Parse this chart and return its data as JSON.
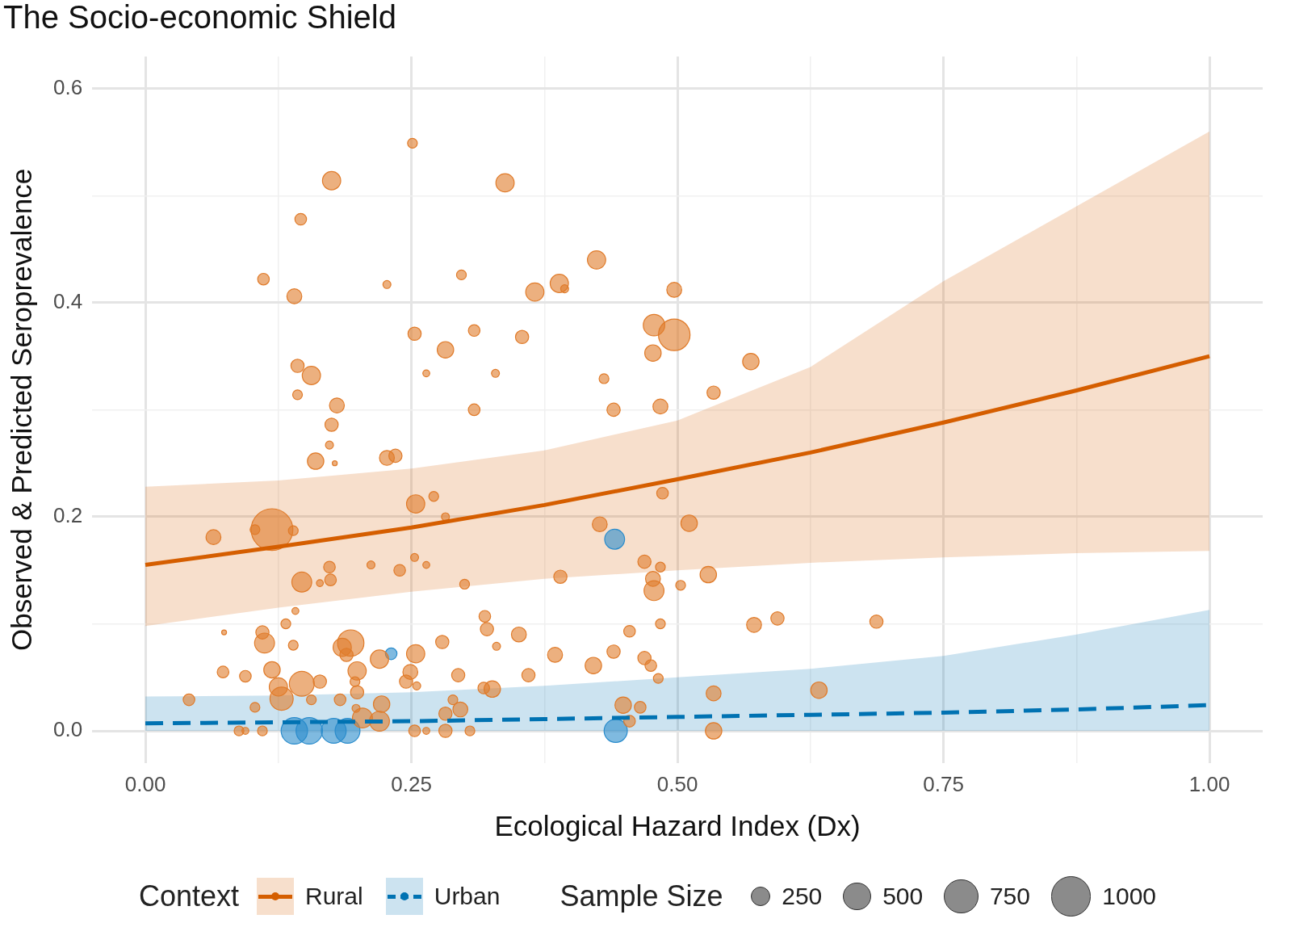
{
  "chart_data": {
    "type": "scatter",
    "title": "The Socio-economic Shield",
    "xlabel": "Ecological Hazard Index (Dx)",
    "ylabel": "Observed & Predicted Seroprevalence",
    "legend_title": "Context",
    "annotations": [
      "Sample Size"
    ],
    "legend": "bottom",
    "grid": true,
    "xlim": [
      -0.05,
      1.05
    ],
    "ylim": [
      -0.03,
      0.63
    ],
    "xticks": [
      {
        "value": 0,
        "label": "0.00"
      },
      {
        "value": 0.125,
        "label": null
      },
      0.25,
      {
        "value": 0.375,
        "label": null
      },
      {
        "value": 0.5,
        "label": "0.50"
      },
      {
        "value": 0.625,
        "label": null
      },
      0.75,
      {
        "value": 0.875,
        "label": null
      },
      {
        "value": 1,
        "label": "1.00"
      }
    ],
    "yticks": [
      {
        "value": 0,
        "label": "0.0"
      },
      {
        "value": 0.1,
        "label": null
      },
      0.2,
      {
        "value": 0.3,
        "label": null
      },
      0.4,
      {
        "value": 0.5,
        "label": null
      },
      0.6
    ],
    "size_legend": [
      250,
      500,
      750,
      1000
    ],
    "series": [
      {
        "type": "scatter",
        "color": "#e07b2a",
        "marker": "circle",
        "x": [
          0.251,
          0.175,
          0.338,
          0.146,
          0.111,
          0.227,
          0.297,
          0.424,
          0.389,
          0.394,
          0.366,
          0.14,
          0.497,
          0.478,
          0.497,
          0.253,
          0.309,
          0.354,
          0.282,
          0.477,
          0.569,
          0.143,
          0.156,
          0.264,
          0.329,
          0.431,
          0.143,
          0.534,
          0.18,
          0.309,
          0.44,
          0.484,
          0.175,
          0.173,
          0.178,
          0.16,
          0.227,
          0.235,
          0.254,
          0.271,
          0.486,
          0.282,
          0.119,
          0.064,
          0.103,
          0.139,
          0.427,
          0.511,
          0.173,
          0.212,
          0.253,
          0.264,
          0.469,
          0.484,
          0.239,
          0.39,
          0.529,
          0.477,
          0.147,
          0.174,
          0.164,
          0.3,
          0.503,
          0.478,
          0.319,
          0.141,
          0.132,
          0.074,
          0.11,
          0.321,
          0.351,
          0.572,
          0.594,
          0.687,
          0.484,
          0.455,
          0.112,
          0.139,
          0.193,
          0.185,
          0.189,
          0.279,
          0.33,
          0.22,
          0.254,
          0.385,
          0.44,
          0.469,
          0.073,
          0.119,
          0.199,
          0.249,
          0.094,
          0.421,
          0.475,
          0.294,
          0.36,
          0.164,
          0.147,
          0.197,
          0.245,
          0.255,
          0.482,
          0.125,
          0.318,
          0.326,
          0.633,
          0.199,
          0.534,
          0.041,
          0.128,
          0.156,
          0.183,
          0.289,
          0.222,
          0.103,
          0.198,
          0.296,
          0.449,
          0.465,
          0.282,
          0.204,
          0.22,
          0.455,
          0.534,
          0.088,
          0.11,
          0.253,
          0.282,
          0.305,
          0.094,
          0.264
        ],
        "values": [
          0.549,
          0.514,
          0.512,
          0.478,
          0.422,
          0.417,
          0.426,
          0.44,
          0.418,
          0.413,
          0.41,
          0.406,
          0.412,
          0.379,
          0.37,
          0.371,
          0.374,
          0.368,
          0.356,
          0.353,
          0.345,
          0.341,
          0.332,
          0.334,
          0.334,
          0.329,
          0.314,
          0.316,
          0.304,
          0.3,
          0.3,
          0.303,
          0.286,
          0.267,
          0.25,
          0.252,
          0.255,
          0.257,
          0.212,
          0.219,
          0.222,
          0.2,
          0.188,
          0.181,
          0.188,
          0.187,
          0.193,
          0.194,
          0.153,
          0.155,
          0.162,
          0.155,
          0.158,
          0.153,
          0.15,
          0.144,
          0.146,
          0.142,
          0.139,
          0.141,
          0.138,
          0.137,
          0.136,
          0.131,
          0.107,
          0.112,
          0.1,
          0.092,
          0.092,
          0.095,
          0.09,
          0.099,
          0.105,
          0.102,
          0.1,
          0.093,
          0.082,
          0.08,
          0.082,
          0.078,
          0.071,
          0.083,
          0.079,
          0.067,
          0.072,
          0.071,
          0.074,
          0.068,
          0.055,
          0.057,
          0.056,
          0.055,
          0.051,
          0.061,
          0.061,
          0.052,
          0.052,
          0.046,
          0.044,
          0.046,
          0.046,
          0.042,
          0.049,
          0.041,
          0.04,
          0.039,
          0.038,
          0.036,
          0.035,
          0.029,
          0.03,
          0.029,
          0.029,
          0.029,
          0.025,
          0.022,
          0.021,
          0.02,
          0.024,
          0.022,
          0.016,
          0.012,
          0.009,
          0.009,
          0,
          0,
          0,
          0,
          0,
          0,
          0,
          0
        ],
        "sizes": [
          60,
          210,
          210,
          85,
          85,
          40,
          60,
          210,
          210,
          40,
          210,
          140,
          140,
          290,
          630,
          110,
          85,
          110,
          170,
          170,
          170,
          110,
          210,
          30,
          40,
          60,
          60,
          110,
          140,
          85,
          110,
          140,
          110,
          40,
          15,
          170,
          140,
          110,
          210,
          60,
          85,
          40,
          1100,
          140,
          60,
          60,
          140,
          170,
          85,
          40,
          40,
          30,
          110,
          60,
          85,
          110,
          170,
          140,
          250,
          85,
          30,
          60,
          60,
          250,
          85,
          30,
          60,
          15,
          110,
          110,
          140,
          140,
          110,
          110,
          60,
          85,
          250,
          60,
          440,
          210,
          110,
          110,
          40,
          210,
          210,
          140,
          110,
          110,
          85,
          170,
          210,
          140,
          85,
          170,
          85,
          110,
          110,
          110,
          390,
          60,
          110,
          40,
          60,
          210,
          85,
          170,
          170,
          110,
          140,
          85,
          340,
          60,
          85,
          60,
          170,
          60,
          40,
          140,
          170,
          85,
          110,
          250,
          250,
          85,
          170,
          60,
          60,
          85,
          110,
          60,
          30,
          30
        ]
      },
      {
        "type": "scatter",
        "color": "#2a8ccc",
        "marker": "circle",
        "x": [
          0.441,
          0.231,
          0.14,
          0.154,
          0.177,
          0.19,
          0.442
        ],
        "values": [
          0.179,
          0.072,
          0,
          0,
          0,
          0,
          0
        ],
        "sizes": [
          250,
          85,
          440,
          440,
          390,
          390,
          340
        ]
      },
      {
        "type": "line",
        "name": "Rural",
        "color": "#d55e00",
        "marker": "none",
        "line_style": "solid",
        "x": [
          0,
          0.125,
          0.25,
          0.375,
          0.5,
          0.625,
          0.75,
          0.875,
          1
        ],
        "values": [
          0.155,
          0.172,
          0.19,
          0.211,
          0.235,
          0.26,
          0.288,
          0.318,
          0.35
        ],
        "lower": [
          0.098,
          0.115,
          0.13,
          0.142,
          0.15,
          0.157,
          0.162,
          0.166,
          0.168
        ],
        "upper": [
          0.228,
          0.234,
          0.245,
          0.262,
          0.29,
          0.34,
          0.42,
          0.49,
          0.56
        ]
      },
      {
        "type": "line",
        "name": "Urban",
        "color": "#0072b2",
        "marker": "none",
        "line_style": "dashed",
        "x": [
          0,
          0.125,
          0.25,
          0.375,
          0.5,
          0.625,
          0.75,
          0.875,
          1
        ],
        "values": [
          0.007,
          0.008,
          0.009,
          0.011,
          0.013,
          0.015,
          0.017,
          0.02,
          0.024
        ],
        "lower": [
          0,
          0,
          0,
          0,
          0,
          0,
          0,
          0,
          0
        ],
        "upper": [
          0.032,
          0.033,
          0.036,
          0.042,
          0.05,
          0.058,
          0.07,
          0.09,
          0.113
        ]
      }
    ]
  }
}
